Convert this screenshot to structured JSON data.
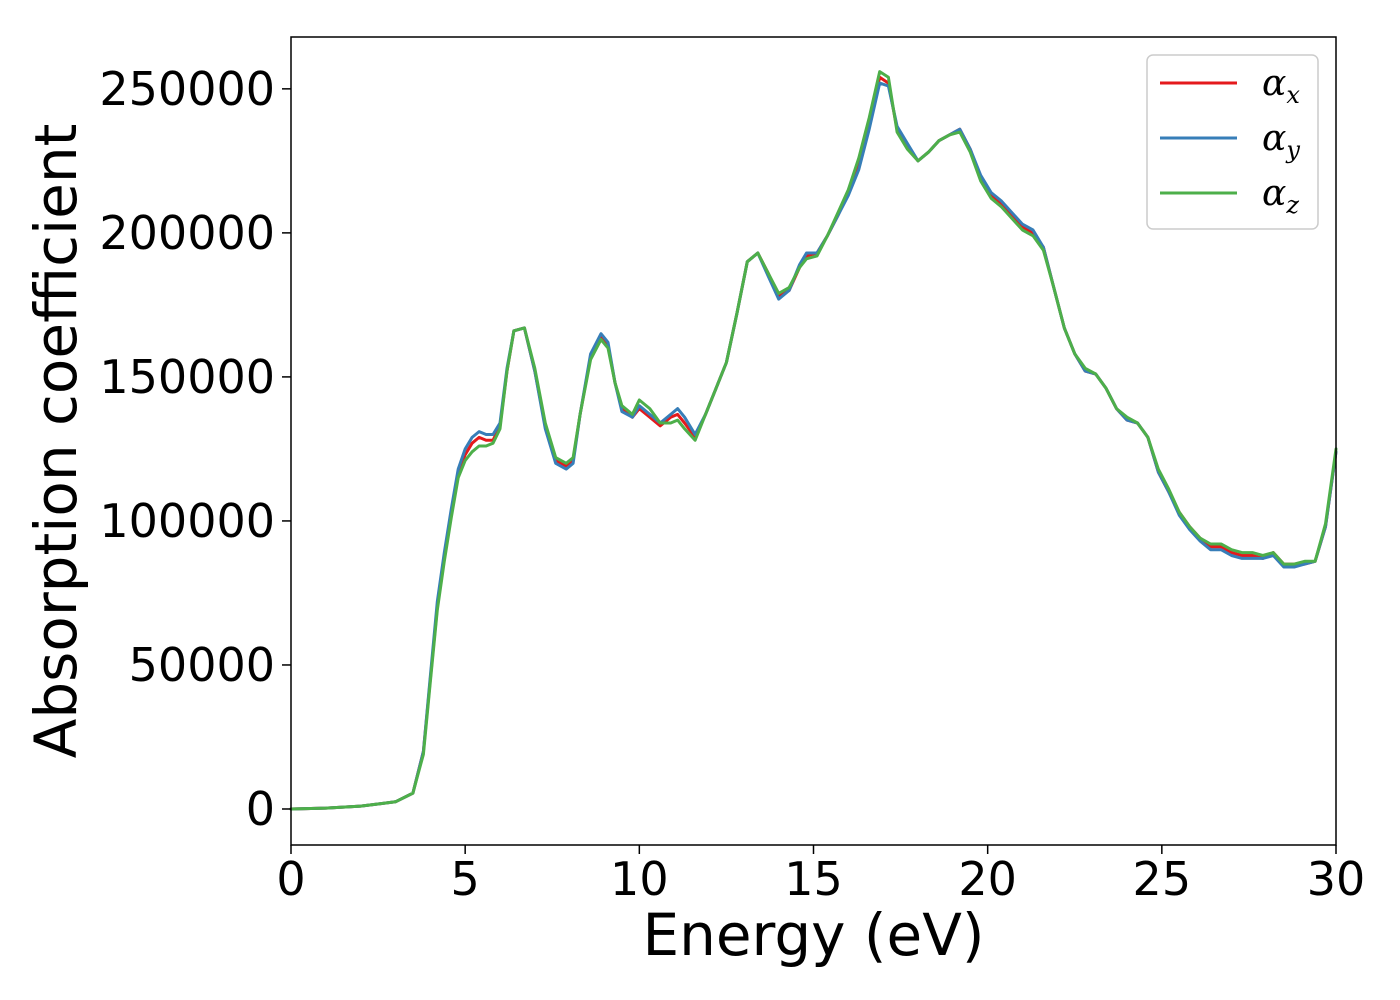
{
  "chart_data": {
    "type": "line",
    "xlabel": "Energy (eV)",
    "ylabel": "Absorption coefficient",
    "xlim": [
      0,
      30
    ],
    "ylim": [
      -12500,
      268000
    ],
    "xticks": [
      0,
      5,
      10,
      15,
      20,
      25,
      30
    ],
    "yticks": [
      0,
      50000,
      100000,
      150000,
      200000,
      250000
    ],
    "grid": false,
    "legend_position": "top-right",
    "series": [
      {
        "name": "α",
        "subscript": "x",
        "color": "#e41a1c",
        "x": [
          0,
          1,
          2,
          3,
          3.5,
          3.8,
          4.0,
          4.2,
          4.4,
          4.6,
          4.8,
          5.0,
          5.2,
          5.4,
          5.6,
          5.8,
          6.0,
          6.2,
          6.4,
          6.7,
          7.0,
          7.3,
          7.6,
          7.9,
          8.1,
          8.3,
          8.6,
          8.9,
          9.1,
          9.3,
          9.5,
          9.8,
          10.0,
          10.3,
          10.6,
          10.9,
          11.1,
          11.3,
          11.6,
          11.9,
          12.2,
          12.5,
          12.8,
          13.1,
          13.4,
          13.7,
          14.0,
          14.3,
          14.6,
          14.8,
          15.1,
          15.4,
          15.7,
          16.0,
          16.3,
          16.6,
          16.9,
          17.15,
          17.4,
          17.7,
          18.0,
          18.3,
          18.6,
          18.9,
          19.2,
          19.5,
          19.8,
          20.1,
          20.4,
          20.7,
          21.0,
          21.3,
          21.6,
          21.9,
          22.2,
          22.5,
          22.8,
          23.1,
          23.4,
          23.7,
          24.0,
          24.3,
          24.6,
          24.9,
          25.2,
          25.5,
          25.8,
          26.1,
          26.4,
          26.7,
          27.0,
          27.3,
          27.6,
          27.9,
          28.2,
          28.5,
          28.8,
          29.1,
          29.4,
          29.7,
          30.0
        ],
        "y": [
          0,
          300,
          1000,
          2500,
          5500,
          20000,
          45000,
          70000,
          88000,
          103000,
          117000,
          123000,
          127000,
          129000,
          128000,
          128000,
          133000,
          152000,
          166000,
          167000,
          152000,
          133000,
          121000,
          119000,
          121000,
          137000,
          157000,
          164000,
          161000,
          148000,
          139000,
          136000,
          139000,
          136000,
          133000,
          136000,
          137000,
          134000,
          129000,
          137000,
          146000,
          155000,
          172000,
          190000,
          193000,
          186000,
          178000,
          180000,
          188000,
          192000,
          193000,
          199000,
          206000,
          214000,
          224000,
          238000,
          254000,
          252000,
          236000,
          230000,
          225000,
          228000,
          232000,
          234000,
          236000,
          229000,
          219000,
          213000,
          210000,
          206000,
          202000,
          200000,
          195000,
          181000,
          167000,
          158000,
          152000,
          151000,
          146000,
          139000,
          135000,
          134000,
          129000,
          117000,
          110000,
          103000,
          98000,
          94000,
          91000,
          91000,
          89000,
          88000,
          88000,
          87000,
          89000,
          85000,
          85000,
          85000,
          86000,
          98000,
          124000
        ]
      },
      {
        "name": "α",
        "subscript": "y",
        "color": "#377eb8",
        "x": [
          0,
          1,
          2,
          3,
          3.5,
          3.8,
          4.0,
          4.2,
          4.4,
          4.6,
          4.8,
          5.0,
          5.2,
          5.4,
          5.6,
          5.8,
          6.0,
          6.2,
          6.4,
          6.7,
          7.0,
          7.3,
          7.6,
          7.9,
          8.1,
          8.3,
          8.6,
          8.9,
          9.1,
          9.3,
          9.5,
          9.8,
          10.0,
          10.3,
          10.6,
          10.9,
          11.1,
          11.3,
          11.6,
          11.9,
          12.2,
          12.5,
          12.8,
          13.1,
          13.4,
          13.7,
          14.0,
          14.3,
          14.6,
          14.8,
          15.1,
          15.4,
          15.7,
          16.0,
          16.3,
          16.6,
          16.9,
          17.15,
          17.4,
          17.7,
          18.0,
          18.3,
          18.6,
          18.9,
          19.2,
          19.5,
          19.8,
          20.1,
          20.4,
          20.7,
          21.0,
          21.3,
          21.6,
          21.9,
          22.2,
          22.5,
          22.8,
          23.1,
          23.4,
          23.7,
          24.0,
          24.3,
          24.6,
          24.9,
          25.2,
          25.5,
          25.8,
          26.1,
          26.4,
          26.7,
          27.0,
          27.3,
          27.6,
          27.9,
          28.2,
          28.5,
          28.8,
          29.1,
          29.4,
          29.7,
          30.0
        ],
        "y": [
          0,
          300,
          1000,
          2500,
          5500,
          20000,
          46000,
          72000,
          89000,
          104000,
          118000,
          125000,
          129000,
          131000,
          130000,
          130000,
          134000,
          153000,
          166000,
          167000,
          152000,
          132000,
          120000,
          118000,
          120000,
          137000,
          158000,
          165000,
          162000,
          148000,
          138000,
          136000,
          140000,
          137000,
          134000,
          137000,
          139000,
          136000,
          130000,
          137000,
          146000,
          155000,
          172000,
          190000,
          193000,
          185000,
          177000,
          180000,
          189000,
          193000,
          193000,
          199000,
          206000,
          213000,
          222000,
          236000,
          252000,
          251000,
          237000,
          231000,
          225000,
          228000,
          232000,
          234000,
          236000,
          229000,
          220000,
          214000,
          211000,
          207000,
          203000,
          201000,
          195000,
          181000,
          167000,
          158000,
          152000,
          151000,
          146000,
          139000,
          135000,
          134000,
          129000,
          117000,
          110000,
          102000,
          97000,
          93000,
          90000,
          90000,
          88000,
          87000,
          87000,
          87000,
          88000,
          84000,
          84000,
          85000,
          86000,
          98000,
          124000
        ]
      },
      {
        "name": "α",
        "subscript": "z",
        "color": "#4daf4a",
        "x": [
          0,
          1,
          2,
          3,
          3.5,
          3.8,
          4.0,
          4.2,
          4.4,
          4.6,
          4.8,
          5.0,
          5.2,
          5.4,
          5.6,
          5.8,
          6.0,
          6.2,
          6.4,
          6.7,
          7.0,
          7.3,
          7.6,
          7.9,
          8.1,
          8.3,
          8.6,
          8.9,
          9.1,
          9.3,
          9.5,
          9.8,
          10.0,
          10.3,
          10.6,
          10.9,
          11.1,
          11.3,
          11.6,
          11.9,
          12.2,
          12.5,
          12.8,
          13.1,
          13.4,
          13.7,
          14.0,
          14.3,
          14.6,
          14.8,
          15.1,
          15.4,
          15.7,
          16.0,
          16.3,
          16.6,
          16.9,
          17.15,
          17.4,
          17.7,
          18.0,
          18.3,
          18.6,
          18.9,
          19.2,
          19.5,
          19.8,
          20.1,
          20.4,
          20.7,
          21.0,
          21.3,
          21.6,
          21.9,
          22.2,
          22.5,
          22.8,
          23.1,
          23.4,
          23.7,
          24.0,
          24.3,
          24.6,
          24.9,
          25.2,
          25.5,
          25.8,
          26.1,
          26.4,
          26.7,
          27.0,
          27.3,
          27.6,
          27.9,
          28.2,
          28.5,
          28.8,
          29.1,
          29.4,
          29.7,
          30.0
        ],
        "y": [
          0,
          300,
          1000,
          2500,
          5500,
          19000,
          44000,
          69000,
          86000,
          101000,
          115000,
          121000,
          124000,
          126000,
          126000,
          127000,
          132000,
          152000,
          166000,
          167000,
          153000,
          134000,
          122000,
          120000,
          122000,
          137000,
          156000,
          163000,
          160000,
          148000,
          140000,
          137000,
          142000,
          139000,
          134000,
          134000,
          135000,
          132000,
          128000,
          137000,
          146000,
          155000,
          172000,
          190000,
          193000,
          186000,
          179000,
          181000,
          188000,
          191000,
          192000,
          199000,
          207000,
          215000,
          226000,
          240000,
          256000,
          254000,
          235000,
          229000,
          225000,
          228000,
          232000,
          234000,
          235000,
          228000,
          218000,
          212000,
          209000,
          205000,
          201000,
          199000,
          194000,
          181000,
          167000,
          158000,
          153000,
          151000,
          146000,
          139000,
          136000,
          134000,
          129000,
          118000,
          111000,
          103000,
          98000,
          94000,
          92000,
          92000,
          90000,
          89000,
          89000,
          88000,
          89000,
          85000,
          85000,
          86000,
          86000,
          99000,
          125000
        ]
      }
    ]
  }
}
